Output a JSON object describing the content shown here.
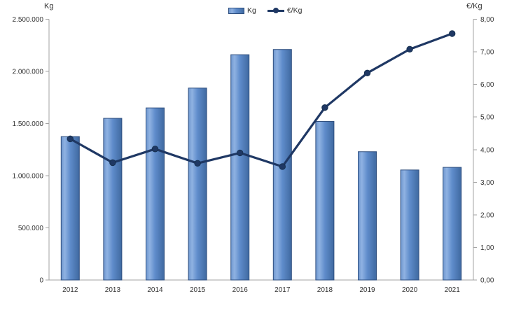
{
  "chart": {
    "left_axis_title": "Kg",
    "right_axis_title": "€/Kg",
    "legend": [
      {
        "label": "Kg",
        "type": "bar"
      },
      {
        "label": "€/Kg",
        "type": "line"
      }
    ]
  },
  "chart_data": {
    "type": "combo",
    "categories": [
      "2012",
      "2013",
      "2014",
      "2015",
      "2016",
      "2017",
      "2018",
      "2019",
      "2020",
      "2021"
    ],
    "series": [
      {
        "name": "Kg",
        "type": "bar",
        "axis": "left",
        "values": [
          1375000,
          1550000,
          1650000,
          1840000,
          2160000,
          2210000,
          1520000,
          1230000,
          1055000,
          1080000
        ]
      },
      {
        "name": "€/Kg",
        "type": "line",
        "axis": "right",
        "values": [
          4.33,
          3.6,
          4.02,
          3.58,
          3.9,
          3.48,
          5.29,
          6.35,
          7.08,
          7.56
        ]
      }
    ],
    "title": "",
    "xlabel": "",
    "left_axis": {
      "title": "Kg",
      "min": 0,
      "max": 2500000,
      "ticks": [
        0,
        500000,
        1000000,
        1500000,
        2000000,
        2500000
      ],
      "tick_labels": [
        "0",
        "500.000",
        "1.000.000",
        "1.500.000",
        "2.000.000",
        "2.500.000"
      ]
    },
    "right_axis": {
      "title": "€/Kg",
      "min": 0,
      "max": 8,
      "ticks": [
        0,
        1,
        2,
        3,
        4,
        5,
        6,
        7,
        8
      ],
      "tick_labels": [
        "0,00",
        "1,00",
        "2,00",
        "3,00",
        "4,00",
        "5,00",
        "6,00",
        "7,00",
        "8,00"
      ]
    },
    "legend_position": "top",
    "grid": false
  },
  "colors": {
    "bar_fill": "#5F8CCB",
    "bar_fill_light": "#8FB2E2",
    "bar_fill_edge": "#6E96CE",
    "bar_fill_dark": "#3F69A0",
    "bar_border": "#2E4E7E",
    "line": "#1F3864",
    "marker_edge": "#16304F",
    "axis": "#A3A3A3",
    "text": "#333333"
  }
}
